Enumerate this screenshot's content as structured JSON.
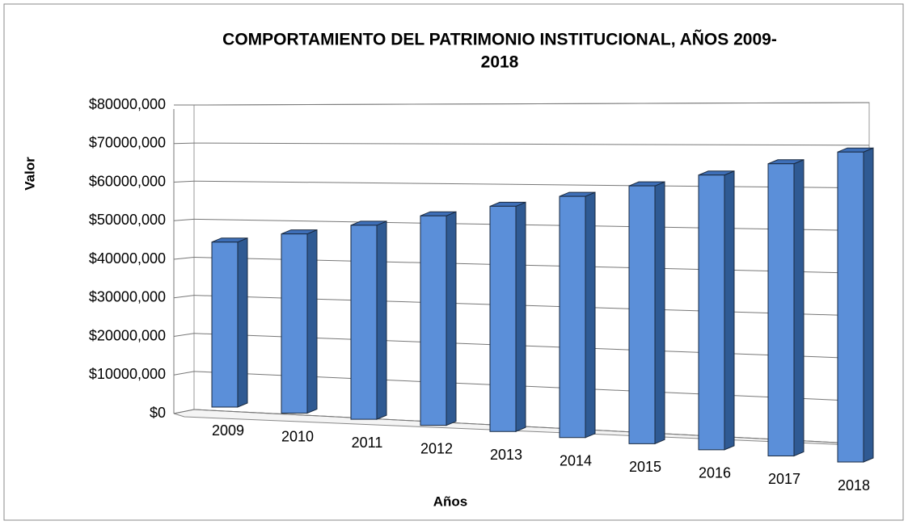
{
  "chart_data": {
    "type": "bar3d",
    "title": [
      "COMPORTAMIENTO DEL PATRIMONIO INSTITUCIONAL, AÑOS 2009-",
      "2018"
    ],
    "x_label": "Años",
    "y_label": "Valor",
    "categories": [
      "2009",
      "2010",
      "2011",
      "2012",
      "2013",
      "2014",
      "2015",
      "2016",
      "2017",
      "2018"
    ],
    "values": [
      43700000,
      46500000,
      49300000,
      52200000,
      55000000,
      57800000,
      60600000,
      63400000,
      66200000,
      69000000
    ],
    "color": "#5b8fd9",
    "ylim": [
      0,
      80000000
    ],
    "yticks": [
      {
        "value": 0,
        "label": "$0"
      },
      {
        "value": 10000000,
        "label": "$10000,000"
      },
      {
        "value": 20000000,
        "label": "$20000,000"
      },
      {
        "value": 30000000,
        "label": "$30000,000"
      },
      {
        "value": 40000000,
        "label": "$40000,000"
      },
      {
        "value": 50000000,
        "label": "$50000,000"
      },
      {
        "value": 60000000,
        "label": "$60000,000"
      },
      {
        "value": 70000000,
        "label": "$70000,000"
      },
      {
        "value": 80000000,
        "label": "$80000,000"
      }
    ],
    "grid": true
  }
}
